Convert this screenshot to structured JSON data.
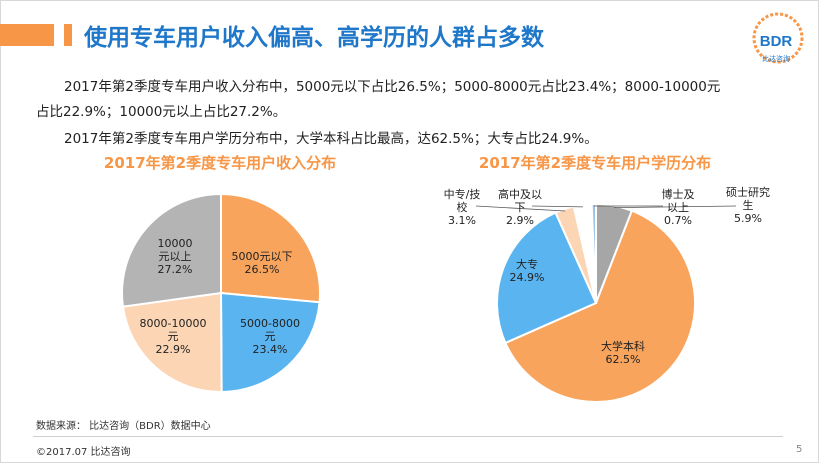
{
  "header": {
    "title": "使用专车用户收入偏高、高学历的人群占多数"
  },
  "logo": {
    "text": "BDR",
    "subtext": "比达咨询"
  },
  "body": {
    "para1_line1": "2017年第2季度专车用户收入分布中，5000元以下占比26.5%；5000-8000元占比23.4%；8000-10000元",
    "para1_line2": "占比22.9%；10000元以上占比27.2%。",
    "para2": "2017年第2季度专车用户学历分布中，大学本科占比最高，达62.5%；大专占比24.9%。"
  },
  "colors": {
    "accent": "#f79646",
    "title_blue": "#1f77c9",
    "gray": "#a6a6a6",
    "light_blue": "#59b4f0",
    "peach": "#fcd5b5",
    "orange": "#f8a45c"
  },
  "chart_data": [
    {
      "type": "pie",
      "title": "2017年第2季度专车用户收入分布",
      "slices": [
        {
          "label": "5000元以下",
          "value": 26.5,
          "value_label": "26.5%",
          "color": "#f8a45c"
        },
        {
          "label": "5000-8000元",
          "value": 23.4,
          "value_label": "23.4%",
          "color": "#59b4f0"
        },
        {
          "label": "8000-10000元",
          "value": 22.9,
          "value_label": "22.9%",
          "color": "#fcd5b5"
        },
        {
          "label": "10000元以上",
          "value": 27.2,
          "value_label": "27.2%",
          "color": "#b4b4b4"
        }
      ]
    },
    {
      "type": "pie",
      "title": "2017年第2季度专车用户学历分布",
      "slices": [
        {
          "label": "硕士研究生",
          "value": 5.9,
          "value_label": "5.9%",
          "color": "#a6a6a6"
        },
        {
          "label": "大学本科",
          "value": 62.5,
          "value_label": "62.5%",
          "color": "#f8a45c"
        },
        {
          "label": "大专",
          "value": 24.9,
          "value_label": "24.9%",
          "color": "#59b4f0"
        },
        {
          "label": "中专/技校",
          "value": 3.1,
          "value_label": "3.1%",
          "color": "#fcd5b5"
        },
        {
          "label": "高中及以下",
          "value": 2.9,
          "value_label": "2.9%",
          "color": "#ffffff"
        },
        {
          "label": "博士及以上",
          "value": 0.7,
          "value_label": "0.7%",
          "color": "#9dc3e6"
        }
      ]
    }
  ],
  "footer": {
    "source": "数据来源：  比达咨询（BDR）数据中心",
    "copyright": "©2017.07    比达咨询",
    "page": "5"
  }
}
